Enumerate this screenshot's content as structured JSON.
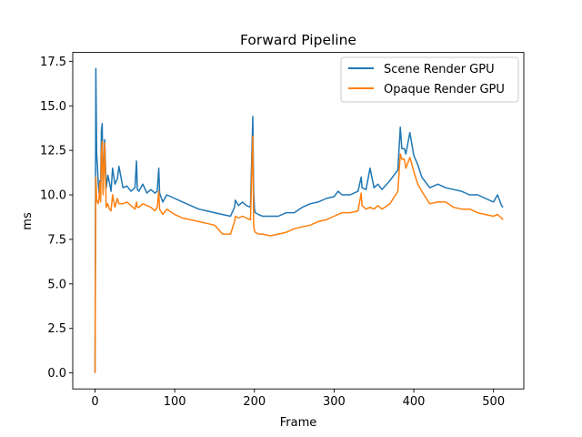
{
  "chart_data": {
    "type": "line",
    "title": "Forward Pipeline",
    "xlabel": "Frame",
    "ylabel": "ms",
    "xlim": [
      -28,
      538
    ],
    "ylim": [
      -0.9,
      18.0
    ],
    "xticks": [
      0,
      100,
      200,
      300,
      400,
      500
    ],
    "xtick_labels": [
      "0",
      "100",
      "200",
      "300",
      "400",
      "500"
    ],
    "yticks": [
      0.0,
      2.5,
      5.0,
      7.5,
      10.0,
      12.5,
      15.0,
      17.5
    ],
    "ytick_labels": [
      "0.0",
      "2.5",
      "5.0",
      "7.5",
      "10.0",
      "12.5",
      "15.0",
      "17.5"
    ],
    "grid": false,
    "legend_position": "upper right",
    "series": [
      {
        "name": "Scene Render GPU",
        "color": "#1f77b4",
        "x": [
          0,
          1,
          2,
          3,
          4,
          5,
          6,
          7,
          8,
          9,
          10,
          12,
          14,
          16,
          18,
          20,
          22,
          25,
          28,
          30,
          35,
          40,
          45,
          50,
          52,
          53,
          55,
          60,
          65,
          70,
          75,
          78,
          80,
          81,
          85,
          90,
          100,
          110,
          120,
          130,
          140,
          150,
          160,
          170,
          175,
          176,
          180,
          185,
          190,
          195,
          198,
          199,
          200,
          201,
          205,
          210,
          220,
          230,
          240,
          250,
          260,
          270,
          280,
          290,
          300,
          305,
          310,
          320,
          330,
          334,
          335,
          340,
          345,
          350,
          355,
          360,
          370,
          380,
          383,
          385,
          388,
          390,
          395,
          400,
          405,
          410,
          420,
          430,
          440,
          450,
          460,
          470,
          480,
          490,
          500,
          505,
          510,
          512
        ],
        "y": [
          0.0,
          17.1,
          12.3,
          11.6,
          10.7,
          10.1,
          10.8,
          10.5,
          13.6,
          14.0,
          10.2,
          13.1,
          10.4,
          11.1,
          10.7,
          10.2,
          11.5,
          10.6,
          10.9,
          11.6,
          10.4,
          10.5,
          10.2,
          10.4,
          11.9,
          10.3,
          10.2,
          10.6,
          10.1,
          10.3,
          10.1,
          10.2,
          11.5,
          10.1,
          9.6,
          10.0,
          9.8,
          9.6,
          9.4,
          9.2,
          9.1,
          9.0,
          8.9,
          8.8,
          9.3,
          9.7,
          9.4,
          9.6,
          9.4,
          9.3,
          14.4,
          10.3,
          9.2,
          9.0,
          8.9,
          8.8,
          8.8,
          8.8,
          9.0,
          9.0,
          9.3,
          9.5,
          9.6,
          9.8,
          9.9,
          10.2,
          10.0,
          10.0,
          10.2,
          11.0,
          10.4,
          10.3,
          11.5,
          10.4,
          10.6,
          10.3,
          10.8,
          11.4,
          13.8,
          12.6,
          12.6,
          12.3,
          13.5,
          12.2,
          11.7,
          11.0,
          10.4,
          10.6,
          10.4,
          10.3,
          10.2,
          10.0,
          10.0,
          9.8,
          9.6,
          10.0,
          9.4,
          9.3
        ]
      },
      {
        "name": "Opaque Render GPU",
        "color": "#ff7f0e",
        "x": [
          0,
          1,
          2,
          3,
          4,
          5,
          6,
          7,
          8,
          9,
          10,
          12,
          14,
          16,
          18,
          20,
          22,
          25,
          28,
          30,
          35,
          40,
          45,
          50,
          52,
          53,
          55,
          60,
          65,
          70,
          75,
          78,
          80,
          81,
          85,
          90,
          100,
          110,
          120,
          130,
          140,
          150,
          160,
          170,
          175,
          176,
          180,
          185,
          190,
          195,
          198,
          199,
          200,
          201,
          205,
          210,
          220,
          230,
          240,
          250,
          260,
          270,
          280,
          290,
          300,
          305,
          310,
          320,
          330,
          334,
          335,
          340,
          345,
          350,
          355,
          360,
          370,
          380,
          383,
          385,
          388,
          390,
          395,
          400,
          405,
          410,
          420,
          430,
          440,
          450,
          460,
          470,
          480,
          490,
          500,
          505,
          510,
          512
        ],
        "y": [
          0.0,
          11.0,
          9.7,
          9.6,
          9.5,
          9.8,
          10.7,
          9.6,
          12.4,
          13.0,
          10.0,
          12.9,
          9.3,
          9.5,
          9.2,
          9.1,
          10.0,
          9.3,
          9.8,
          9.5,
          9.5,
          9.6,
          9.4,
          9.2,
          9.6,
          9.3,
          9.3,
          9.5,
          9.4,
          9.3,
          9.1,
          9.3,
          10.2,
          9.2,
          8.9,
          9.2,
          8.9,
          8.7,
          8.6,
          8.5,
          8.4,
          8.3,
          7.8,
          7.8,
          8.5,
          8.8,
          8.7,
          8.8,
          8.7,
          8.6,
          13.3,
          8.3,
          8.0,
          7.9,
          7.8,
          7.8,
          7.7,
          7.8,
          7.9,
          8.1,
          8.2,
          8.3,
          8.5,
          8.6,
          8.8,
          8.9,
          9.0,
          9.0,
          9.1,
          10.1,
          9.4,
          9.2,
          9.3,
          9.2,
          9.4,
          9.2,
          9.5,
          10.2,
          12.3,
          12.0,
          12.0,
          11.5,
          12.1,
          11.3,
          10.6,
          10.2,
          9.5,
          9.6,
          9.6,
          9.3,
          9.2,
          9.2,
          9.0,
          8.9,
          8.8,
          8.9,
          8.7,
          8.6
        ]
      }
    ]
  }
}
